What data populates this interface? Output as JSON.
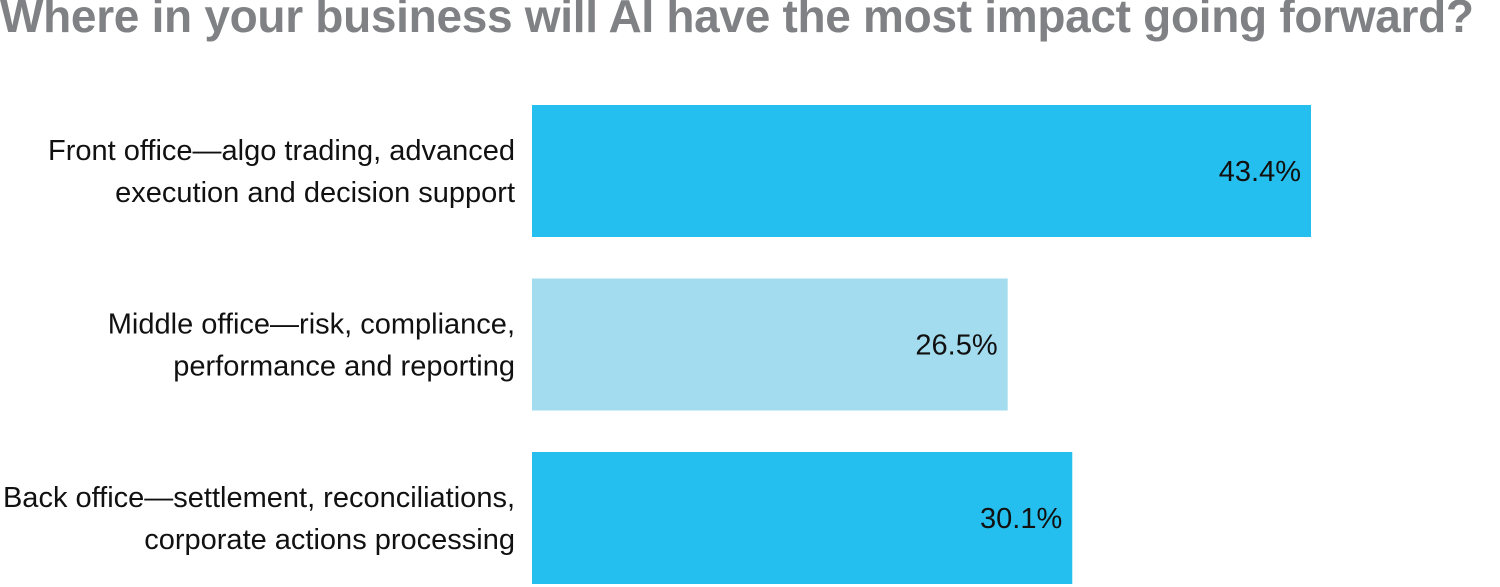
{
  "chart_data": {
    "type": "bar",
    "orientation": "horizontal",
    "title": "Where in your business will AI have the most impact going forward?",
    "categories": [
      [
        "Front office—algo trading, advanced",
        "execution and decision support"
      ],
      [
        "Middle office—risk, compliance,",
        "performance and reporting"
      ],
      [
        "Back office—settlement, reconciliations,",
        "corporate actions processing"
      ]
    ],
    "values": [
      43.4,
      26.5,
      30.1
    ],
    "value_labels": [
      "43.4%",
      "26.5%",
      "30.1%"
    ],
    "bar_colors": [
      "#25bfef",
      "#a3dbef",
      "#25bfef"
    ],
    "xlim": [
      0,
      50
    ],
    "grid": false,
    "legend": "none"
  }
}
